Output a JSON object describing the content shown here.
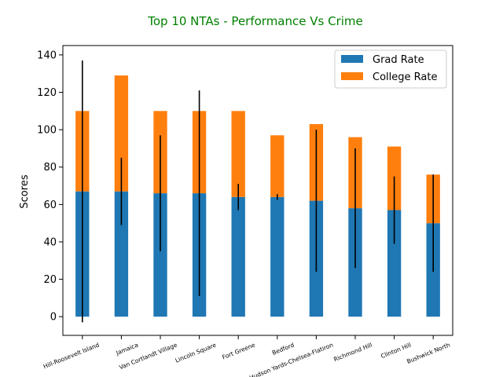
{
  "chart_data": {
    "type": "bar",
    "stacked": true,
    "title": "Top 10 NTAs - Performance Vs Crime",
    "title_color": "#008000",
    "ylabel": "Scores",
    "xlabel": "",
    "ylim": [
      -10,
      145
    ],
    "yticks": [
      0,
      20,
      40,
      60,
      80,
      100,
      120,
      140
    ],
    "grid": false,
    "legend_position": "top-right",
    "categories": [
      "Hill-Roosevelt Island",
      "Jamaica",
      "Van Cortlandt Village",
      "Lincoln Square",
      "Fort Greene",
      "Bedford",
      "Hudson Yards-Chelsea-Flatiron",
      "Richmond Hill",
      "Clinton Hill",
      "Bushwick North"
    ],
    "series": [
      {
        "name": "Grad Rate",
        "color": "#1f77b4",
        "values": [
          67,
          67,
          66,
          66,
          64,
          64,
          62,
          58,
          57,
          50
        ]
      },
      {
        "name": "College Rate",
        "color": "#ff7f0e",
        "values": [
          43,
          62,
          44,
          44,
          46,
          33,
          41,
          38,
          34,
          26
        ]
      }
    ],
    "error_bars": {
      "color": "#000000",
      "center": [
        67,
        67,
        66,
        66,
        64,
        64,
        62,
        58,
        57,
        50
      ],
      "error": [
        70,
        18,
        31,
        55,
        7,
        1.5,
        38,
        32,
        18,
        26
      ]
    }
  }
}
